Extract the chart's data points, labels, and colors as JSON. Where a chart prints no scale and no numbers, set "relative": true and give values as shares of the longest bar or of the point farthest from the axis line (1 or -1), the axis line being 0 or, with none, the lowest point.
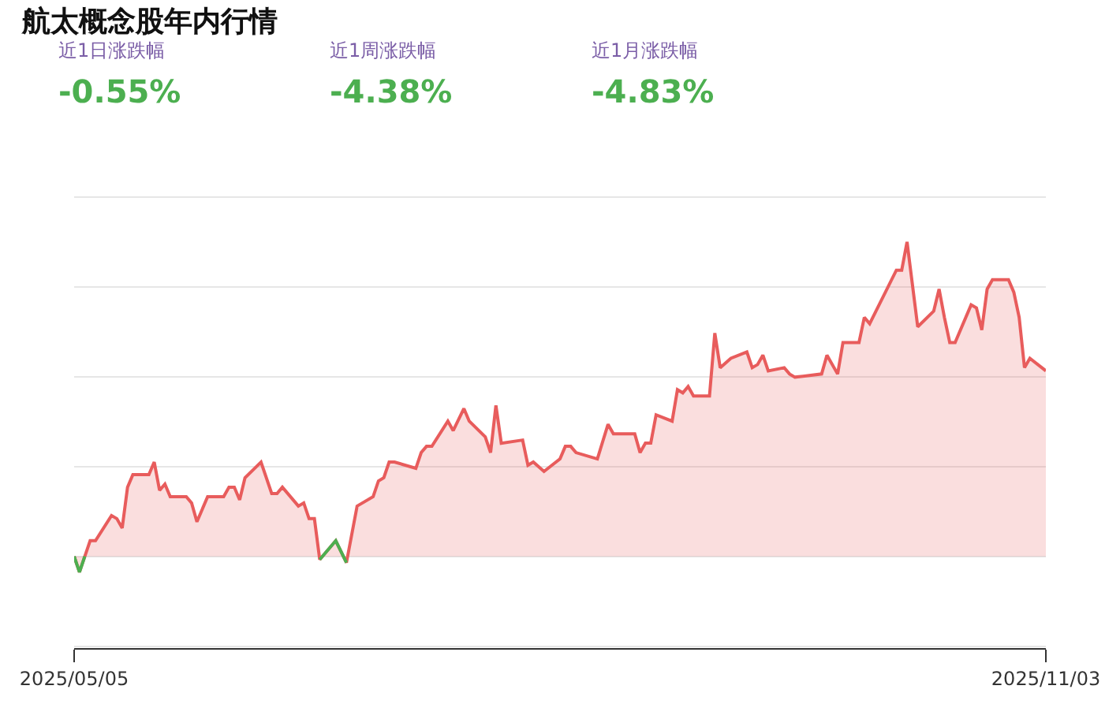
{
  "chart_data": {
    "type": "area",
    "title": "航太概念股年内行情",
    "annotations": [
      "近1日涨跌幅",
      "-0.55%",
      "近1周涨跌幅",
      "-4.38%",
      "近1月涨跌幅",
      "-4.83%"
    ],
    "relative": true,
    "x": [
      "2025-05-05",
      "2025-05-06",
      "2025-05-07",
      "2025-05-08",
      "2025-05-09",
      "2025-05-12",
      "2025-05-13",
      "2025-05-14",
      "2025-05-15",
      "2025-05-16",
      "2025-05-19",
      "2025-05-20",
      "2025-05-21",
      "2025-05-22",
      "2025-05-23",
      "2025-05-26",
      "2025-05-27",
      "2025-05-28",
      "2025-05-30",
      "2025-06-02",
      "2025-06-03",
      "2025-06-04",
      "2025-06-05",
      "2025-06-06",
      "2025-06-09",
      "2025-06-11",
      "2025-06-12",
      "2025-06-13",
      "2025-06-16",
      "2025-06-17",
      "2025-06-18",
      "2025-06-19",
      "2025-06-20",
      "2025-06-23",
      "2025-06-25",
      "2025-06-27",
      "2025-06-30",
      "2025-07-01",
      "2025-07-02",
      "2025-07-03",
      "2025-07-04",
      "2025-07-08",
      "2025-07-09",
      "2025-07-10",
      "2025-07-11",
      "2025-07-14",
      "2025-07-15",
      "2025-07-17",
      "2025-07-18",
      "2025-07-21",
      "2025-07-22",
      "2025-07-23",
      "2025-07-24",
      "2025-07-28",
      "2025-07-29",
      "2025-07-30",
      "2025-08-01",
      "2025-08-04",
      "2025-08-05",
      "2025-08-06",
      "2025-08-07",
      "2025-08-11",
      "2025-08-13",
      "2025-08-14",
      "2025-08-18",
      "2025-08-19",
      "2025-08-20",
      "2025-08-21",
      "2025-08-22",
      "2025-08-25",
      "2025-08-26",
      "2025-08-27",
      "2025-08-28",
      "2025-08-29",
      "2025-09-01",
      "2025-09-02",
      "2025-09-03",
      "2025-09-05",
      "2025-09-08",
      "2025-09-09",
      "2025-09-10",
      "2025-09-11",
      "2025-09-12",
      "2025-09-15",
      "2025-09-16",
      "2025-09-17",
      "2025-09-22",
      "2025-09-23",
      "2025-09-25",
      "2025-09-26",
      "2025-09-29",
      "2025-09-30",
      "2025-10-01",
      "2025-10-06",
      "2025-10-07",
      "2025-10-08",
      "2025-10-10",
      "2025-10-13",
      "2025-10-14",
      "2025-10-15",
      "2025-10-16",
      "2025-10-17",
      "2025-10-20",
      "2025-10-21",
      "2025-10-22",
      "2025-10-23",
      "2025-10-24",
      "2025-10-27",
      "2025-10-28",
      "2025-10-29",
      "2025-10-30",
      "2025-10-31",
      "2025-11-03"
    ],
    "series": [
      {
        "color": "#e85c5c",
        "values": [
          0,
          -0.05,
          0,
          0.05,
          0.05,
          0.13,
          0.12,
          0.09,
          0.22,
          0.26,
          0.26,
          0.3,
          0.21,
          0.23,
          0.19,
          0.19,
          0.17,
          0.11,
          0.19,
          0.19,
          0.22,
          0.22,
          0.18,
          0.25,
          0.3,
          0.2,
          0.2,
          0.22,
          0.16,
          0.17,
          0.12,
          0.12,
          -0.01,
          0.05,
          -0.02,
          0.16,
          0.19,
          0.24,
          0.25,
          0.3,
          0.3,
          0.28,
          0.33,
          0.35,
          0.35,
          0.43,
          0.4,
          0.47,
          0.43,
          0.38,
          0.33,
          0.48,
          0.36,
          0.37,
          0.29,
          0.3,
          0.27,
          0.31,
          0.35,
          0.35,
          0.33,
          0.31,
          0.42,
          0.39,
          0.39,
          0.33,
          0.36,
          0.36,
          0.45,
          0.43,
          0.53,
          0.52,
          0.54,
          0.51,
          0.51,
          0.71,
          0.6,
          0.63,
          0.65,
          0.6,
          0.61,
          0.64,
          0.59,
          0.6,
          0.58,
          0.57,
          0.58,
          0.64,
          0.58,
          0.68,
          0.68,
          0.76,
          0.74,
          0.91,
          0.91,
          1.0,
          0.73,
          0.78,
          0.85,
          0.76,
          0.68,
          0.68,
          0.8,
          0.79,
          0.72,
          0.85,
          0.88,
          0.88,
          0.84,
          0.76,
          0.6,
          0.63,
          0.59
        ]
      },
      {
        "type": "line",
        "color": "#4caf50",
        "values": [
          0,
          -0.05,
          0,
          null,
          null,
          null,
          null,
          null,
          null,
          null,
          null,
          null,
          null,
          null,
          null,
          null,
          null,
          null,
          null,
          null,
          null,
          null,
          null,
          null,
          null,
          null,
          null,
          null,
          null,
          null,
          null,
          null,
          -0.01,
          0.05,
          -0.02,
          null,
          null,
          null,
          null,
          null,
          null,
          null,
          null,
          null,
          null,
          null,
          null,
          null,
          null,
          null,
          null,
          null,
          null,
          null,
          null,
          null,
          null,
          null,
          null,
          null,
          null,
          null,
          null,
          null,
          null,
          null,
          null,
          null,
          null,
          null,
          null,
          null,
          null,
          null,
          null,
          null,
          null,
          null,
          null,
          null,
          null,
          null,
          null,
          null,
          null,
          null,
          null,
          null,
          null,
          null,
          null,
          null,
          null,
          null,
          null,
          null,
          null,
          null,
          null,
          null,
          null,
          null,
          null,
          null,
          null,
          null,
          null,
          null,
          null,
          null,
          null,
          null,
          null
        ]
      }
    ],
    "xlim": [
      "2025-05-05",
      "2025-11-03"
    ],
    "xticks": [
      {
        "value": "2025-05-05",
        "label": "2025/05/05"
      },
      {
        "value": "2025-11-03",
        "label": "2025/11/03"
      }
    ],
    "tick_labels": "x",
    "grid": "y"
  }
}
